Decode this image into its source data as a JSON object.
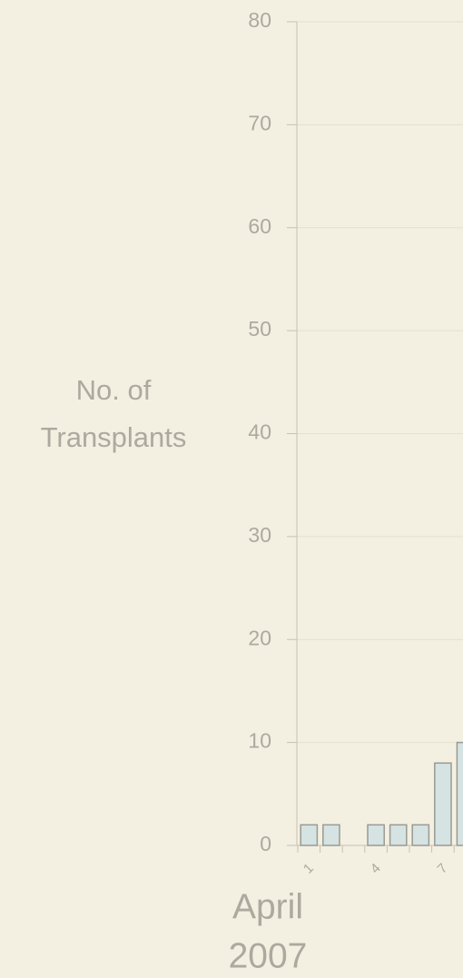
{
  "chart_data": {
    "type": "bar",
    "y_label": [
      "No. of",
      "Transplants"
    ],
    "x_label": [
      "April",
      "2007"
    ],
    "categories": [
      "1",
      null,
      null,
      "4",
      null,
      null,
      "7",
      null
    ],
    "values": [
      2,
      2,
      0,
      2,
      2,
      2,
      8,
      10
    ],
    "color": "#d5e3e3",
    "ylim": [
      0,
      80
    ],
    "yticks": [
      0,
      10,
      20,
      30,
      40,
      50,
      60,
      70,
      80
    ],
    "grid": true
  }
}
